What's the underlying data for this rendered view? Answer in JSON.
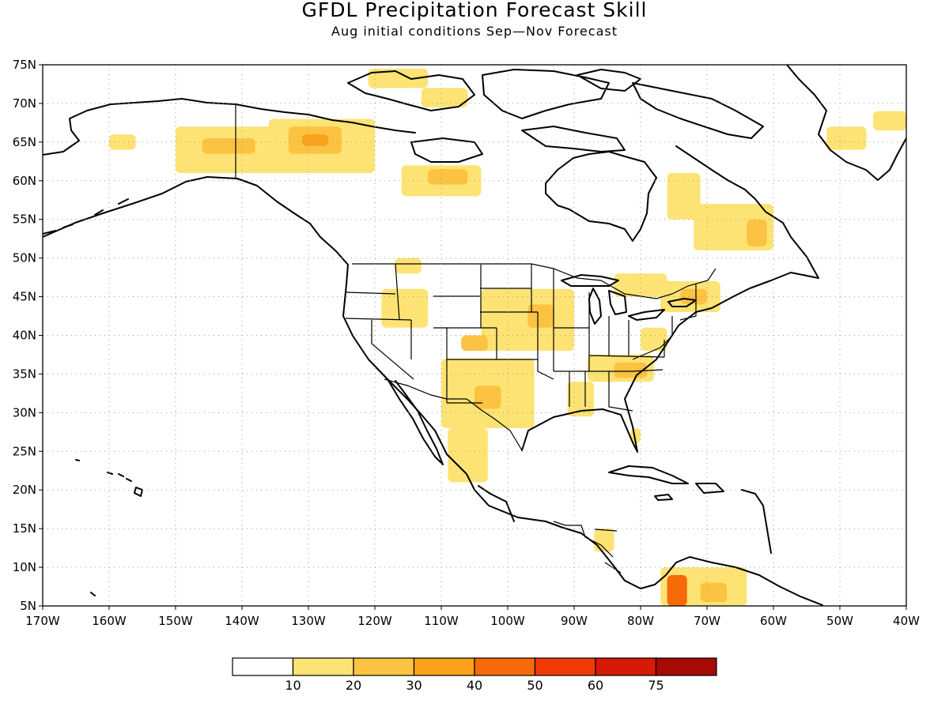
{
  "title": "GFDL Precipitation Forecast Skill",
  "subtitle": "Aug initial conditions  Sep—Nov Forecast",
  "map": {
    "lon_range": [
      -170,
      -40
    ],
    "lat_range": [
      5,
      75
    ],
    "lon_ticks": [
      {
        "lon": -170,
        "label": "170W"
      },
      {
        "lon": -160,
        "label": "160W"
      },
      {
        "lon": -150,
        "label": "150W"
      },
      {
        "lon": -140,
        "label": "140W"
      },
      {
        "lon": -130,
        "label": "130W"
      },
      {
        "lon": -120,
        "label": "120W"
      },
      {
        "lon": -110,
        "label": "110W"
      },
      {
        "lon": -100,
        "label": "100W"
      },
      {
        "lon": -90,
        "label": "90W"
      },
      {
        "lon": -80,
        "label": "80W"
      },
      {
        "lon": -70,
        "label": "70W"
      },
      {
        "lon": -60,
        "label": "60W"
      },
      {
        "lon": -50,
        "label": "50W"
      },
      {
        "lon": -40,
        "label": "40W"
      }
    ],
    "lat_ticks": [
      {
        "lat": 75,
        "label": "75N"
      },
      {
        "lat": 70,
        "label": "70N"
      },
      {
        "lat": 65,
        "label": "65N"
      },
      {
        "lat": 60,
        "label": "60N"
      },
      {
        "lat": 55,
        "label": "55N"
      },
      {
        "lat": 50,
        "label": "50N"
      },
      {
        "lat": 45,
        "label": "45N"
      },
      {
        "lat": 40,
        "label": "40N"
      },
      {
        "lat": 35,
        "label": "35N"
      },
      {
        "lat": 30,
        "label": "30N"
      },
      {
        "lat": 25,
        "label": "25N"
      },
      {
        "lat": 20,
        "label": "20N"
      },
      {
        "lat": 15,
        "label": "15N"
      },
      {
        "lat": 10,
        "label": "10N"
      },
      {
        "lat": 5,
        "label": "5N"
      }
    ],
    "grid": true
  },
  "colorbar": {
    "bins": [
      {
        "color": "#ffffff"
      },
      {
        "color": "#fde373"
      },
      {
        "color": "#fbc341"
      },
      {
        "color": "#f9a21a"
      },
      {
        "color": "#f66a0a"
      },
      {
        "color": "#f23a06"
      },
      {
        "color": "#d61a08"
      },
      {
        "color": "#a50a05"
      }
    ],
    "labels": [
      "10",
      "20",
      "30",
      "40",
      "50",
      "60",
      "75"
    ]
  },
  "skill_regions": [
    {
      "level": 1,
      "lon": [
        -150,
        -134
      ],
      "lat": [
        61,
        67
      ]
    },
    {
      "level": 2,
      "lon": [
        -146,
        -138
      ],
      "lat": [
        63.5,
        65.5
      ]
    },
    {
      "level": 1,
      "lon": [
        -136,
        -120
      ],
      "lat": [
        61,
        68
      ]
    },
    {
      "level": 2,
      "lon": [
        -133,
        -125
      ],
      "lat": [
        63.5,
        67
      ]
    },
    {
      "level": 3,
      "lon": [
        -131,
        -127
      ],
      "lat": [
        64.5,
        66
      ]
    },
    {
      "level": 1,
      "lon": [
        -160,
        -156
      ],
      "lat": [
        64,
        66
      ]
    },
    {
      "level": 1,
      "lon": [
        -116,
        -104
      ],
      "lat": [
        58,
        62
      ]
    },
    {
      "level": 2,
      "lon": [
        -112,
        -106
      ],
      "lat": [
        59.5,
        61.5
      ]
    },
    {
      "level": 1,
      "lon": [
        -121,
        -112
      ],
      "lat": [
        72,
        74.5
      ]
    },
    {
      "level": 1,
      "lon": [
        -113,
        -106
      ],
      "lat": [
        69.5,
        72
      ]
    },
    {
      "level": 1,
      "lon": [
        -76,
        -71
      ],
      "lat": [
        55,
        61
      ]
    },
    {
      "level": 1,
      "lon": [
        -72,
        -60
      ],
      "lat": [
        51,
        57
      ]
    },
    {
      "level": 2,
      "lon": [
        -64,
        -61
      ],
      "lat": [
        51.5,
        55
      ]
    },
    {
      "level": 1,
      "lon": [
        -45,
        -40
      ],
      "lat": [
        66.5,
        69
      ]
    },
    {
      "level": 1,
      "lon": [
        -52,
        -46
      ],
      "lat": [
        64,
        67
      ]
    },
    {
      "level": 1,
      "lon": [
        -117,
        -113
      ],
      "lat": [
        48,
        50
      ]
    },
    {
      "level": 1,
      "lon": [
        -119,
        -112
      ],
      "lat": [
        41,
        46
      ]
    },
    {
      "level": 1,
      "lon": [
        -104,
        -90
      ],
      "lat": [
        38,
        46
      ]
    },
    {
      "level": 2,
      "lon": [
        -97,
        -93
      ],
      "lat": [
        41,
        44
      ]
    },
    {
      "level": 1,
      "lon": [
        -88,
        -78
      ],
      "lat": [
        34,
        37.5
      ]
    },
    {
      "level": 2,
      "lon": [
        -84,
        -79
      ],
      "lat": [
        34.5,
        36.5
      ]
    },
    {
      "level": 1,
      "lon": [
        -80,
        -76
      ],
      "lat": [
        38,
        41
      ]
    },
    {
      "level": 1,
      "lon": [
        -77,
        -68
      ],
      "lat": [
        43,
        47
      ]
    },
    {
      "level": 2,
      "lon": [
        -74,
        -70
      ],
      "lat": [
        44,
        46
      ]
    },
    {
      "level": 1,
      "lon": [
        -84,
        -76
      ],
      "lat": [
        45,
        48
      ]
    },
    {
      "level": 1,
      "lon": [
        -110,
        -96
      ],
      "lat": [
        28,
        37
      ]
    },
    {
      "level": 2,
      "lon": [
        -105,
        -101
      ],
      "lat": [
        30.5,
        33.5
      ]
    },
    {
      "level": 2,
      "lon": [
        -107,
        -103
      ],
      "lat": [
        38,
        40
      ]
    },
    {
      "level": 1,
      "lon": [
        -109,
        -103
      ],
      "lat": [
        21,
        28
      ]
    },
    {
      "level": 1,
      "lon": [
        -91,
        -87
      ],
      "lat": [
        29.5,
        34
      ]
    },
    {
      "level": 1,
      "lon": [
        -87,
        -84
      ],
      "lat": [
        12,
        15
      ]
    },
    {
      "level": 1,
      "lon": [
        -77,
        -64
      ],
      "lat": [
        5,
        10
      ]
    },
    {
      "level": 4,
      "lon": [
        -76,
        -73
      ],
      "lat": [
        5,
        9
      ]
    },
    {
      "level": 2,
      "lon": [
        -71,
        -67
      ],
      "lat": [
        5.5,
        8
      ]
    },
    {
      "level": 1,
      "lon": [
        -81.5,
        -80
      ],
      "lat": [
        26,
        28
      ]
    }
  ]
}
